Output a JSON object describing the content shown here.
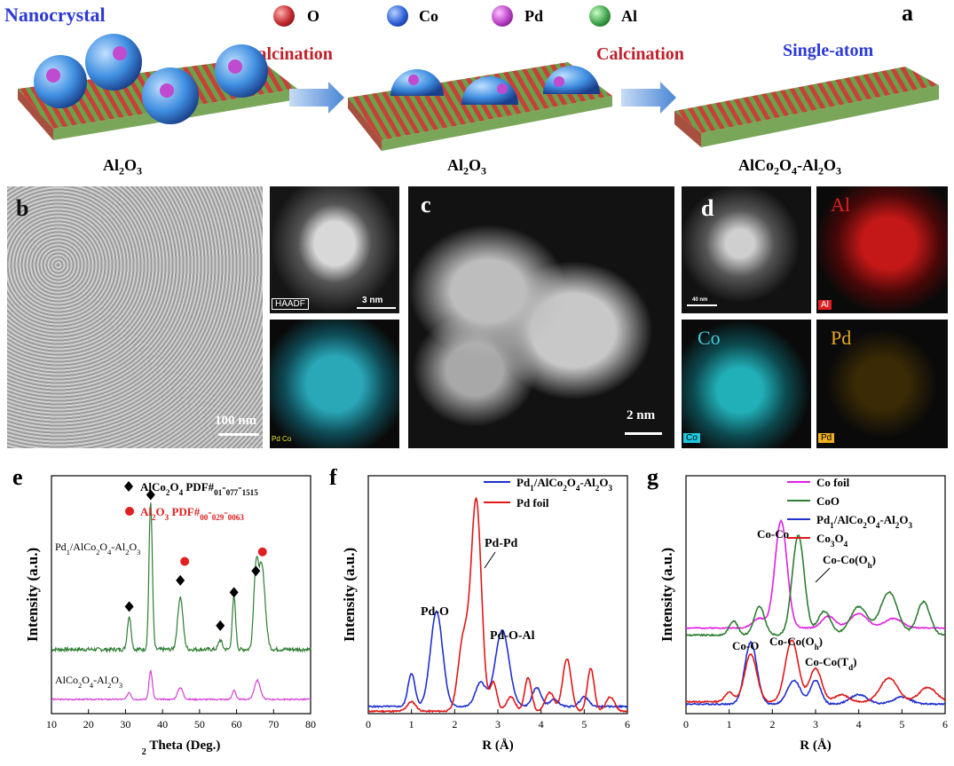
{
  "panel_a": {
    "letter": "a",
    "legend": [
      {
        "symbol": "O",
        "color": "#c0282d"
      },
      {
        "symbol": "Co",
        "color": "#2b5fd6"
      },
      {
        "symbol": "Pd",
        "color": "#b53fc4"
      },
      {
        "symbol": "Al",
        "color": "#3fa04a"
      }
    ],
    "left_title": "Nanocrystal",
    "right_title": "Single-atom",
    "step1": "Calcination",
    "step2": "Calcination",
    "label_left": "Al2O3",
    "label_mid": "Al2O3",
    "label_right": "AlCo2O4-Al2O3"
  },
  "panel_b": {
    "letter": "b",
    "scale_main": "100 nm",
    "haadf": "HAADF",
    "scale_haadf": "3 nm",
    "map_label": "Pd Co"
  },
  "panel_c": {
    "letter": "c",
    "scale": "2 nm"
  },
  "panel_d": {
    "letter": "d",
    "scale": "40 nm",
    "maps": [
      "Al",
      "Co",
      "Pd"
    ]
  },
  "chart_data": [
    {
      "panel": "e",
      "type": "line",
      "xlabel": "2 Theta (Deg.)",
      "ylabel": "Intensity (a.u.)",
      "xlim": [
        10,
        80
      ],
      "xticks": [
        10,
        20,
        30,
        40,
        50,
        60,
        70,
        80
      ],
      "legend": [
        {
          "marker": "diamond",
          "text": "AlCo2O4 PDF#01-077-1515",
          "color": "#000000"
        },
        {
          "marker": "circle",
          "text": "Al2O3 PDF#00-029-0063",
          "color": "#e02020"
        }
      ],
      "series": [
        {
          "name": "Pd1/AlCo2O4-Al2O3",
          "color": "#2e7d32"
        },
        {
          "name": "AlCo2O4-Al2O3",
          "color": "#d63fd6"
        }
      ],
      "diamond_positions": [
        31,
        36.8,
        44.8,
        55.6,
        59.3,
        65.2
      ],
      "circle_positions": [
        46,
        67
      ]
    },
    {
      "panel": "f",
      "type": "line",
      "xlabel": "R (Å)",
      "ylabel": "Intensity (a.u.)",
      "xlim": [
        0,
        6
      ],
      "xticks": [
        0,
        1,
        2,
        3,
        4,
        5,
        6
      ],
      "series": [
        {
          "name": "Pd1/AlCo2O4-Al2O3",
          "color": "#2030d0"
        },
        {
          "name": "Pd foil",
          "color": "#e01818"
        }
      ],
      "annotations": [
        "Pd-O",
        "Pd-Pd",
        "Pd-O-Al"
      ]
    },
    {
      "panel": "g",
      "type": "line",
      "xlabel": "R (Å)",
      "ylabel": "Intensity (a.u.)",
      "xlim": [
        0,
        6
      ],
      "xticks": [
        0,
        1,
        2,
        3,
        4,
        5,
        6
      ],
      "series": [
        {
          "name": "Co foil",
          "color": "#e020e0"
        },
        {
          "name": "CoO",
          "color": "#2e7d32"
        },
        {
          "name": "Pd1/AlCo2O4-Al2O3",
          "color": "#2030d0"
        },
        {
          "name": "Co3O4",
          "color": "#e01818"
        }
      ],
      "annotations": [
        "Co-Co",
        "Co-Co(Oh)",
        "Co-O",
        "Co-Co(Oh)",
        "Co-Co(Td)"
      ]
    }
  ]
}
